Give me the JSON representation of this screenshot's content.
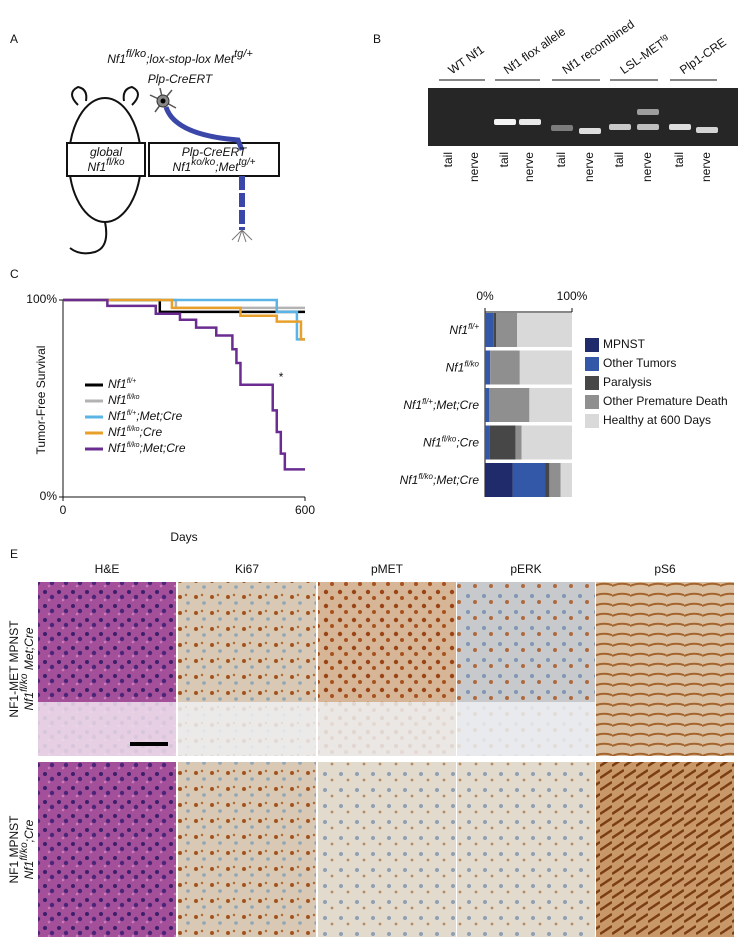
{
  "panels": {
    "a": "A",
    "b": "B",
    "c": "C",
    "e": "E"
  },
  "panel_a": {
    "title_line1": [
      "Nf1",
      "fl/ko",
      ";lox-stop-lox Met",
      "tg/+"
    ],
    "title_line2": "Plp-CreERT",
    "box_left": {
      "line1": "global",
      "line2": [
        "Nf1",
        "fl/ko"
      ]
    },
    "box_right": {
      "line1": "Plp-CreERT",
      "line2": [
        "Nf1",
        "ko/ko",
        ";Met",
        "tg/+"
      ]
    }
  },
  "panel_b": {
    "groups": [
      "WT Nf1",
      "Nf1 flox allele",
      "Nf1 recombined",
      [
        "LSL-MET",
        "tg"
      ],
      "Plp1-CRE"
    ],
    "lanes": [
      "tail",
      "nerve",
      "tail",
      "nerve",
      "tail",
      "nerve",
      "tail",
      "nerve",
      "tail",
      "nerve"
    ]
  },
  "chart_data": [
    {
      "type": "step",
      "ylabel": "Tumor-Free Survival",
      "xlabel": "Days",
      "xlim": [
        0,
        600
      ],
      "xticks": [
        0,
        600
      ],
      "ylim": [
        0,
        100
      ],
      "yticks": [
        {
          "value": 0,
          "label": "0%"
        },
        {
          "value": 100,
          "label": "100%"
        }
      ],
      "annotation": "*",
      "series": [
        {
          "name": [
            "Nf1",
            "fl/+"
          ],
          "color": "#000000",
          "x": [
            0,
            240,
            600
          ],
          "values": [
            100,
            94,
            94
          ]
        },
        {
          "name": [
            "Nf1",
            "fl/ko"
          ],
          "color": "#b3b3b3",
          "x": [
            0,
            280,
            600
          ],
          "values": [
            100,
            96,
            96
          ]
        },
        {
          "name": [
            "Nf1",
            "fl/+",
            ";Met;Cre"
          ],
          "color": "#5ab4e5",
          "x": [
            0,
            530,
            580,
            600
          ],
          "values": [
            100,
            94,
            80,
            80
          ]
        },
        {
          "name": [
            "Nf1",
            "fl/ko",
            ";Cre"
          ],
          "color": "#e8a02a",
          "x": [
            0,
            270,
            440,
            530,
            590,
            600
          ],
          "values": [
            100,
            96,
            92,
            89,
            80,
            80
          ]
        },
        {
          "name": [
            "Nf1",
            "fl/ko",
            ";Met;Cre"
          ],
          "color": "#6b2c91",
          "x": [
            0,
            110,
            230,
            290,
            330,
            380,
            420,
            430,
            440,
            520,
            530,
            540,
            550,
            600
          ],
          "values": [
            100,
            97,
            93,
            90,
            86,
            82,
            75,
            68,
            57,
            44,
            33,
            22,
            14,
            14
          ]
        }
      ]
    },
    {
      "type": "stacked-barh",
      "categories": [
        [
          "Nf1",
          "fl/+"
        ],
        [
          "Nf1",
          "fl/ko"
        ],
        [
          "Nf1",
          "fl/+",
          ";Met;Cre"
        ],
        [
          "Nf1",
          "fl/ko",
          ";Cre"
        ],
        [
          "Nf1",
          "fl/ko",
          ";Met;Cre"
        ]
      ],
      "xlim": [
        0,
        100
      ],
      "xticks": [
        {
          "value": 0,
          "label": "0%"
        },
        {
          "value": 100,
          "label": "100%"
        }
      ],
      "series": [
        {
          "name": "MPNST",
          "color": "#1f2b6b",
          "values": [
            0,
            0,
            0,
            0,
            32
          ]
        },
        {
          "name": "Other Tumors",
          "color": "#3358a8",
          "values": [
            10,
            6,
            5,
            5,
            37
          ]
        },
        {
          "name": "Paralysis",
          "color": "#474747",
          "values": [
            3,
            0,
            0,
            30,
            5
          ]
        },
        {
          "name": "Other Premature Death",
          "color": "#8f8f8f",
          "values": [
            24,
            34,
            46,
            7,
            13
          ]
        },
        {
          "name": "Healthy at 600 Days",
          "color": "#d9d9d9",
          "values": [
            63,
            60,
            49,
            58,
            13
          ]
        }
      ]
    }
  ],
  "panel_e": {
    "columns": [
      "H&E",
      "Ki67",
      "pMET",
      "pERK",
      "pS6"
    ],
    "rows": [
      {
        "line1": "NF1-MET MPNST",
        "line2": [
          "Nf1",
          "fl/ko",
          " Met;Cre"
        ]
      },
      {
        "line1": "NF1 MPNST",
        "line2": [
          "Nf1",
          "fl/ko",
          ";Cre"
        ]
      }
    ]
  }
}
